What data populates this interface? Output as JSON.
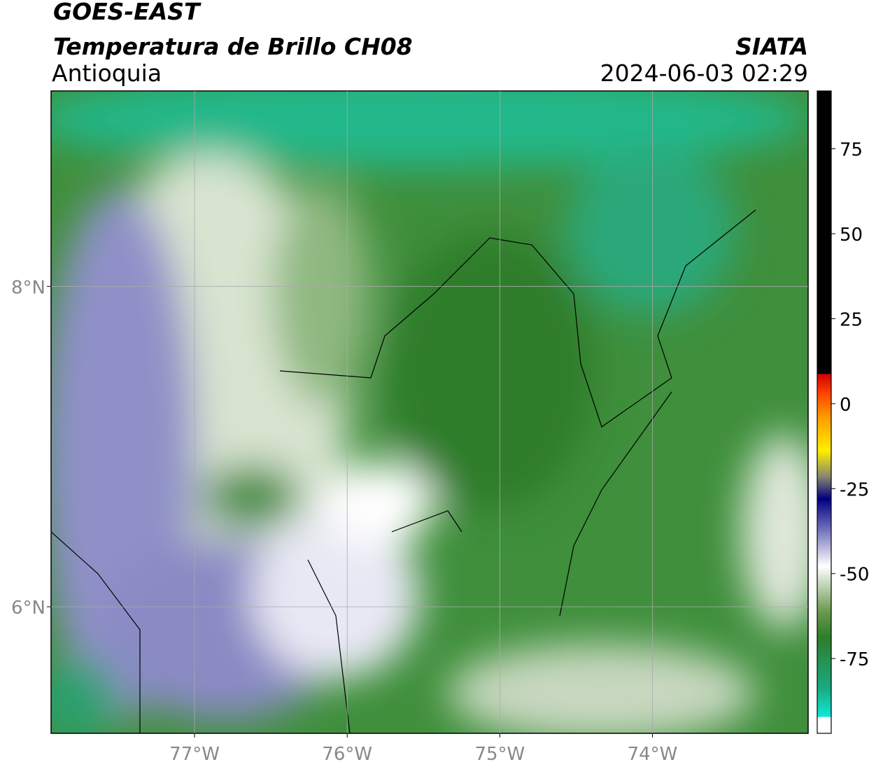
{
  "header": {
    "title": "GOES-EAST",
    "subtitle": "Temperatura de Brillo CH08",
    "region": "Antioquia",
    "agency": "SIATA",
    "datetime": "2024-06-03 02:29"
  },
  "map": {
    "xlim": [
      -77.94,
      -72.98
    ],
    "ylim": [
      5.21,
      9.22
    ],
    "xticks": [
      {
        "value": -77,
        "label": "77°W"
      },
      {
        "value": -76,
        "label": "76°W"
      },
      {
        "value": -75,
        "label": "75°W"
      },
      {
        "value": -74,
        "label": "74°W"
      }
    ],
    "yticks": [
      {
        "value": 8,
        "label": "8°N"
      },
      {
        "value": 6,
        "label": "6°N"
      }
    ],
    "grid": true
  },
  "colorbar": {
    "lim": [
      -97,
      92
    ],
    "ticks": [
      75,
      50,
      25,
      0,
      -25,
      -50,
      -75
    ]
  }
}
